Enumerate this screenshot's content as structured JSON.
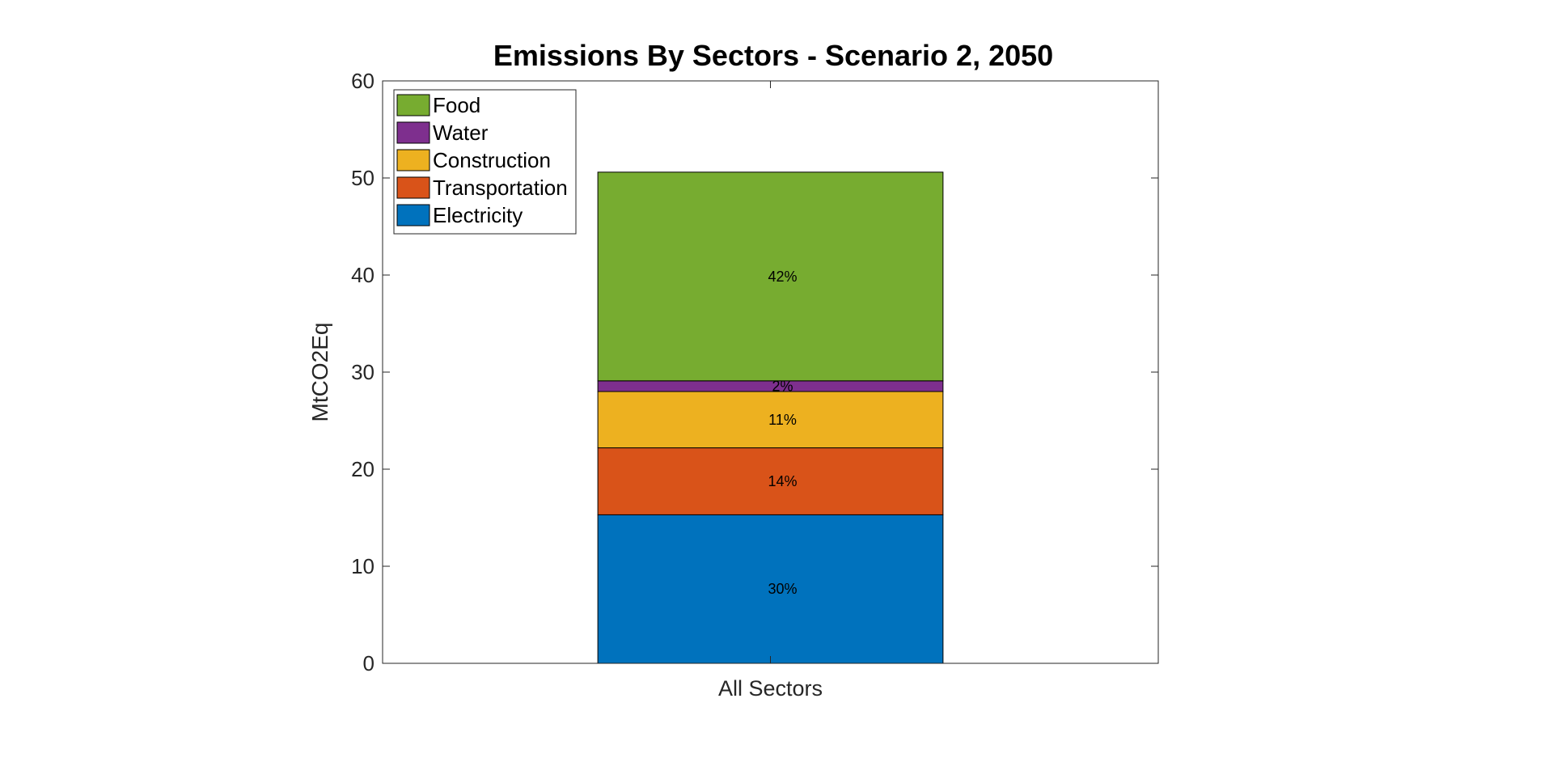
{
  "chart_data": {
    "type": "bar",
    "stacked": true,
    "title": "Emissions By Sectors - Scenario 2, 2050",
    "xlabel": "",
    "ylabel": "MtCO2Eq",
    "categories": [
      "All Sectors"
    ],
    "ylim": [
      0,
      60
    ],
    "yticks": [
      0,
      10,
      20,
      30,
      40,
      50,
      60
    ],
    "grid": false,
    "legend_placement": "top-left",
    "series": [
      {
        "name": "Electricity",
        "values": [
          15.3
        ],
        "color": "#0072BD",
        "label": "30%"
      },
      {
        "name": "Transportation",
        "values": [
          6.9
        ],
        "color": "#D95319",
        "label": "14%"
      },
      {
        "name": "Construction",
        "values": [
          5.8
        ],
        "color": "#EDB120",
        "label": "11%"
      },
      {
        "name": "Water",
        "values": [
          1.1
        ],
        "color": "#7E2F8E",
        "label": "2%"
      },
      {
        "name": "Food",
        "values": [
          21.5
        ],
        "color": "#77AC30",
        "label": "42%"
      }
    ]
  }
}
